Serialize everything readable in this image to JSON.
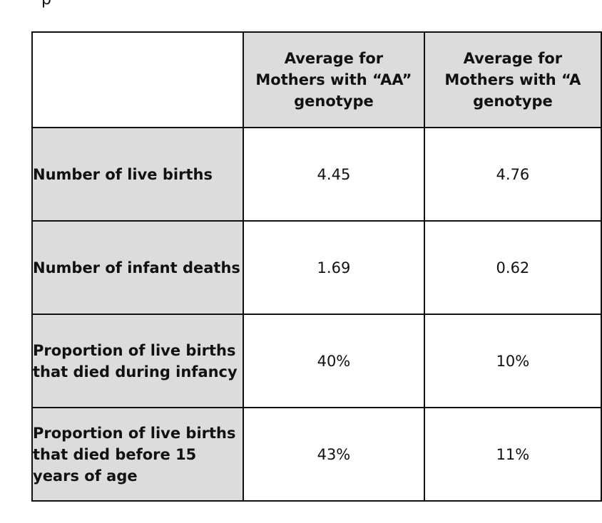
{
  "top_fragment": "p",
  "table": {
    "columns": [
      "",
      "Average for Mothers with “AA” genotype",
      "Average for Mothers with “A"
    ],
    "column_lines": [
      [],
      [
        "Average for",
        "Mothers with “AA”",
        "genotype"
      ],
      [
        "Average for",
        "Mothers with “A",
        "genotype"
      ]
    ],
    "rows": [
      {
        "label": "Number of live births",
        "values": [
          "4.45",
          "4.76"
        ]
      },
      {
        "label": "Number of infant deaths",
        "values": [
          "1.69",
          "0.62"
        ]
      },
      {
        "label": "Proportion of live births that died during infancy",
        "values": [
          "40%",
          "10%"
        ]
      },
      {
        "label": "Proportion of live births that died before 15 years of age",
        "values": [
          "43%",
          "11%"
        ]
      }
    ]
  }
}
